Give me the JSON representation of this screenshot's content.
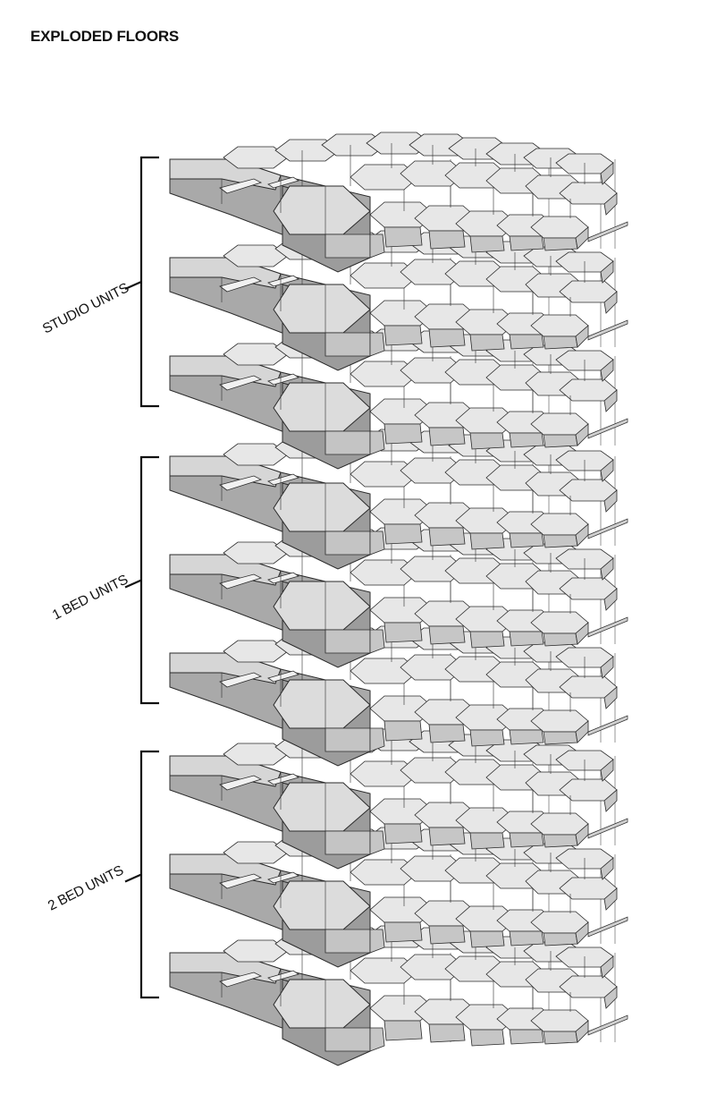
{
  "title": "EXPLODED FLOORS",
  "groups": [
    {
      "label": "STUDIO UNITS",
      "floors": 3
    },
    {
      "label": "1 BED UNITS",
      "floors": 3
    },
    {
      "label": "2 BED UNITS",
      "floors": 3
    }
  ],
  "colors": {
    "line": "#2b2b2b",
    "top_face": "#e4e4e4",
    "front_face": "#a9a9a9",
    "side_face": "#c6c6c6",
    "floor_face": "#f1f1f1"
  }
}
